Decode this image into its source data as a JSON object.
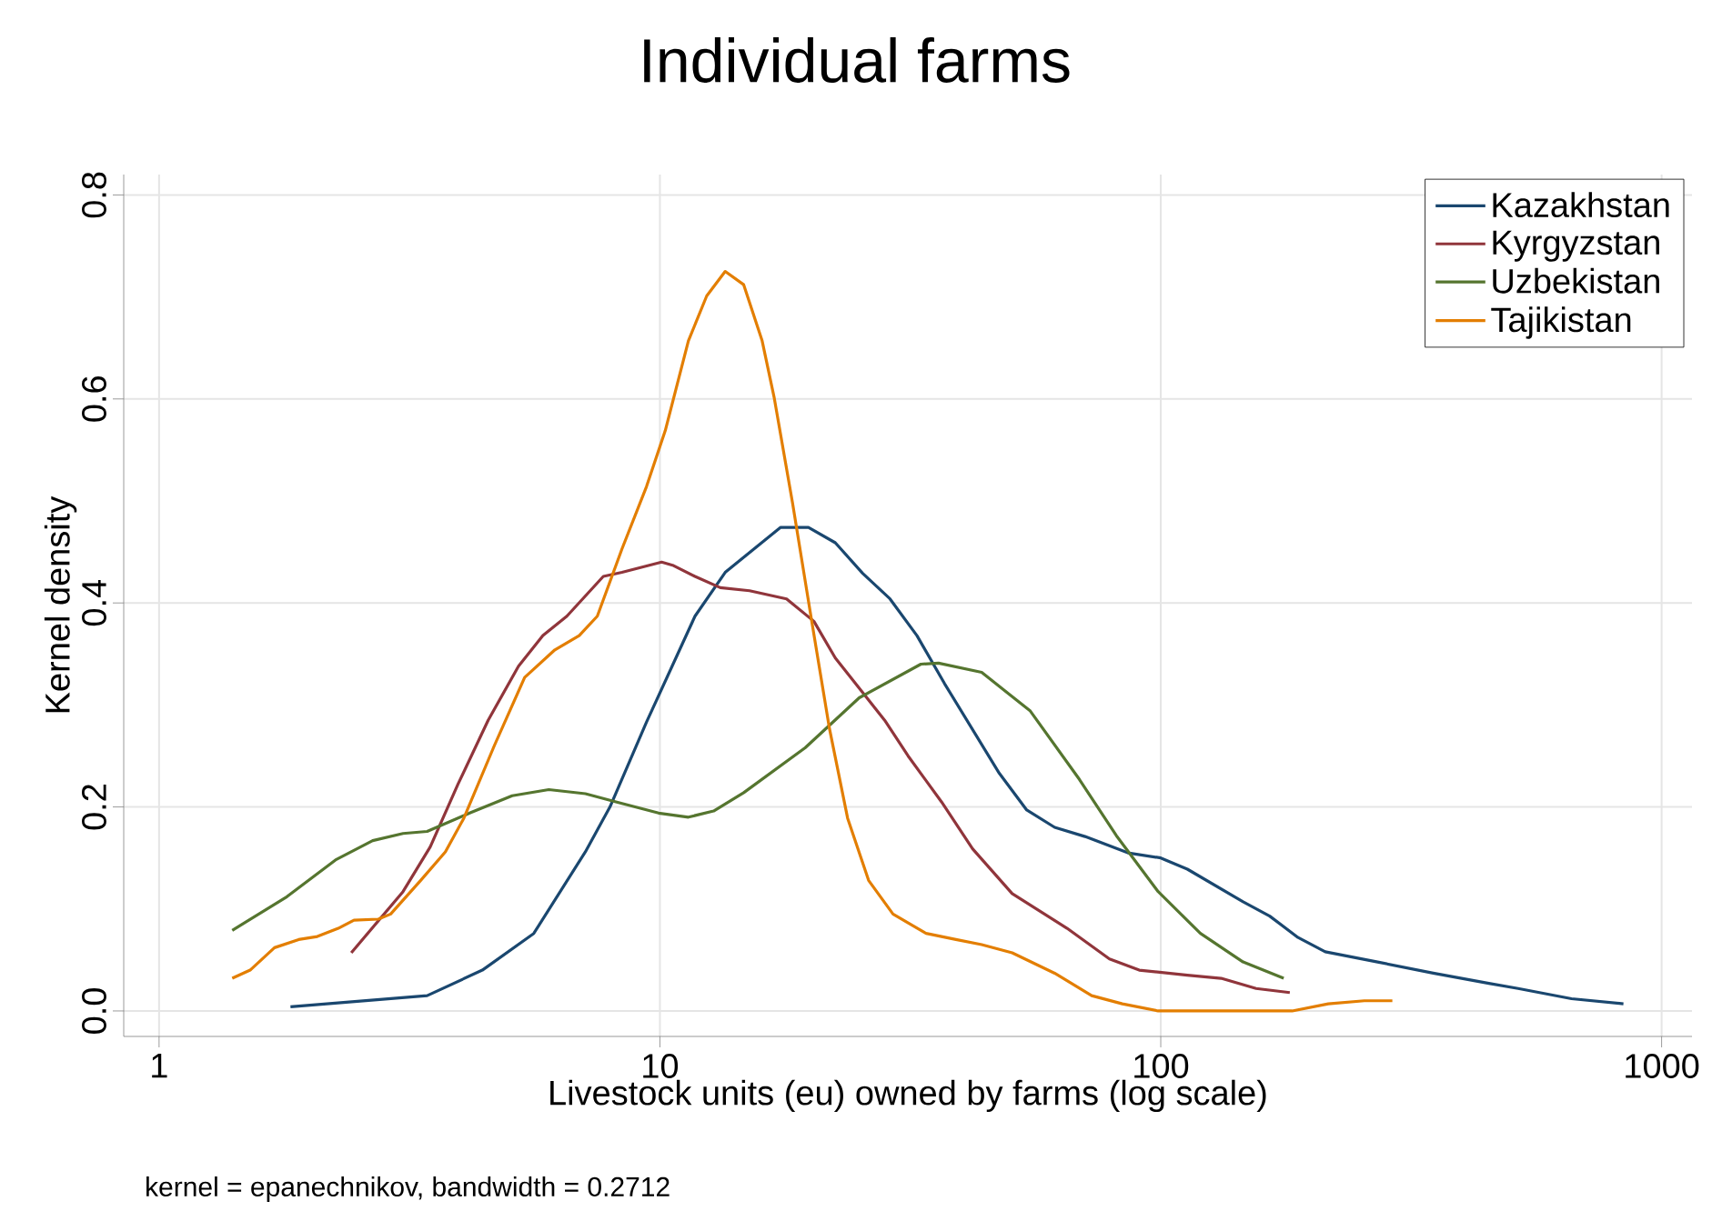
{
  "chart_data": {
    "type": "line",
    "title": "Individual farms",
    "xlabel": "Livestock units (eu) owned by farms (log scale)",
    "ylabel": "Kernel density",
    "log": "x",
    "grid": true,
    "legend": "top right",
    "xlim": [
      0.85,
      1150
    ],
    "ylim": [
      -0.025,
      0.82
    ],
    "xticks": [
      1,
      10,
      100,
      1000
    ],
    "yticks": [
      {
        "value": 0,
        "label": "0.0"
      },
      0.2,
      0.4,
      0.6,
      0.8
    ],
    "annotations": [
      "kernel = epanechnikov, bandwidth = 0.2712"
    ],
    "series": [
      {
        "name": "Kazakhstan",
        "color": "#1a476f",
        "x": [
          1.83,
          3.43,
          4.42,
          5.6,
          7.1,
          7.95,
          9.4,
          11.75,
          13.5,
          17.4,
          19.8,
          22.4,
          25.4,
          28.8,
          32.6,
          37,
          47.6,
          54,
          61.4,
          70.6,
          86,
          100,
          113,
          146,
          165,
          188,
          213,
          271,
          350,
          452,
          517,
          661,
          839
        ],
        "values": [
          0.004,
          0.015,
          0.04,
          0.076,
          0.156,
          0.2,
          0.283,
          0.387,
          0.43,
          0.474,
          0.474,
          0.459,
          0.429,
          0.404,
          0.368,
          0.321,
          0.233,
          0.197,
          0.18,
          0.171,
          0.155,
          0.15,
          0.139,
          0.107,
          0.093,
          0.072,
          0.058,
          0.048,
          0.037,
          0.027,
          0.022,
          0.012,
          0.007
        ]
      },
      {
        "name": "Kyrgyzstan",
        "color": "#90353b",
        "x": [
          2.42,
          3.07,
          3.48,
          3.95,
          4.54,
          5.22,
          5.84,
          6.52,
          7.71,
          8.4,
          10.08,
          10.6,
          11.75,
          13.2,
          15.1,
          17.9,
          20.3,
          22.4,
          28.1,
          31.3,
          36.5,
          42.1,
          50.5,
          65,
          79,
          90.6,
          113,
          132,
          155,
          181
        ],
        "values": [
          0.057,
          0.117,
          0.161,
          0.222,
          0.285,
          0.338,
          0.368,
          0.387,
          0.426,
          0.43,
          0.44,
          0.437,
          0.426,
          0.415,
          0.412,
          0.404,
          0.382,
          0.346,
          0.285,
          0.25,
          0.205,
          0.159,
          0.115,
          0.081,
          0.051,
          0.04,
          0.035,
          0.032,
          0.022,
          0.018
        ]
      },
      {
        "name": "Uzbekistan",
        "color": "#55752f",
        "x": [
          1.4,
          1.8,
          2.25,
          2.67,
          3.07,
          3.43,
          4.17,
          5.07,
          6.0,
          7.1,
          8.17,
          9.94,
          11.4,
          12.8,
          14.7,
          19.5,
          25,
          33.2,
          36,
          43.9,
          54.9,
          68.8,
          81.5,
          98.8,
          120,
          146,
          176
        ],
        "values": [
          0.079,
          0.112,
          0.148,
          0.167,
          0.174,
          0.176,
          0.194,
          0.211,
          0.217,
          0.213,
          0.205,
          0.194,
          0.19,
          0.196,
          0.214,
          0.258,
          0.307,
          0.34,
          0.341,
          0.332,
          0.294,
          0.227,
          0.172,
          0.117,
          0.076,
          0.048,
          0.032
        ]
      },
      {
        "name": "Tajikistan",
        "color": "#e37e00",
        "x": [
          1.4,
          1.52,
          1.7,
          1.9,
          2.07,
          2.28,
          2.45,
          2.74,
          2.9,
          3.33,
          3.73,
          4.06,
          4.67,
          5.37,
          6.17,
          6.9,
          7.5,
          8.4,
          9.4,
          10.25,
          11.4,
          12.4,
          13.5,
          14.7,
          16,
          16.9,
          18.4,
          20.1,
          21.8,
          23.7,
          26.1,
          29.2,
          34,
          39,
          43.9,
          50.5,
          61.4,
          72.8,
          83.8,
          98.8,
          183,
          216,
          255,
          290
        ],
        "values": [
          0.032,
          0.04,
          0.062,
          0.07,
          0.073,
          0.081,
          0.089,
          0.09,
          0.095,
          0.128,
          0.156,
          0.189,
          0.26,
          0.327,
          0.354,
          0.368,
          0.387,
          0.453,
          0.514,
          0.569,
          0.657,
          0.701,
          0.725,
          0.712,
          0.657,
          0.602,
          0.498,
          0.382,
          0.277,
          0.189,
          0.128,
          0.095,
          0.076,
          0.07,
          0.065,
          0.057,
          0.037,
          0.015,
          0.007,
          0.0,
          0.0,
          0.007,
          0.01,
          0.01
        ]
      }
    ]
  }
}
